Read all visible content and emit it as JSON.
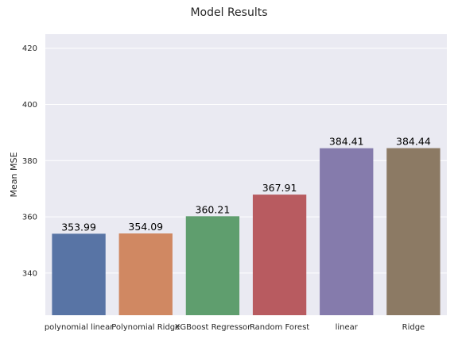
{
  "chart_data": {
    "type": "bar",
    "title": "Model Results",
    "xlabel": "",
    "ylabel": "Mean MSE",
    "categories": [
      "polynomial linear",
      "Polynomial Ridge",
      "XGBoost Regressor",
      "Random Forest",
      "linear",
      "Ridge"
    ],
    "values": [
      353.99,
      354.09,
      360.21,
      367.91,
      384.41,
      384.44
    ],
    "data_labels": [
      "353.99",
      "354.09",
      "360.21",
      "367.91",
      "384.41",
      "384.44"
    ],
    "colors": [
      "#5874a5",
      "#d08862",
      "#5f9e6e",
      "#b85b60",
      "#857bac",
      "#8c7a64"
    ],
    "ylim": [
      325,
      425
    ],
    "yticks": [
      340,
      360,
      380,
      400,
      420
    ],
    "ytick_labels": [
      "340",
      "360",
      "380",
      "400",
      "420"
    ],
    "grid": true,
    "background_color": "#eaeaf2",
    "grid_color": "#ffffff"
  }
}
